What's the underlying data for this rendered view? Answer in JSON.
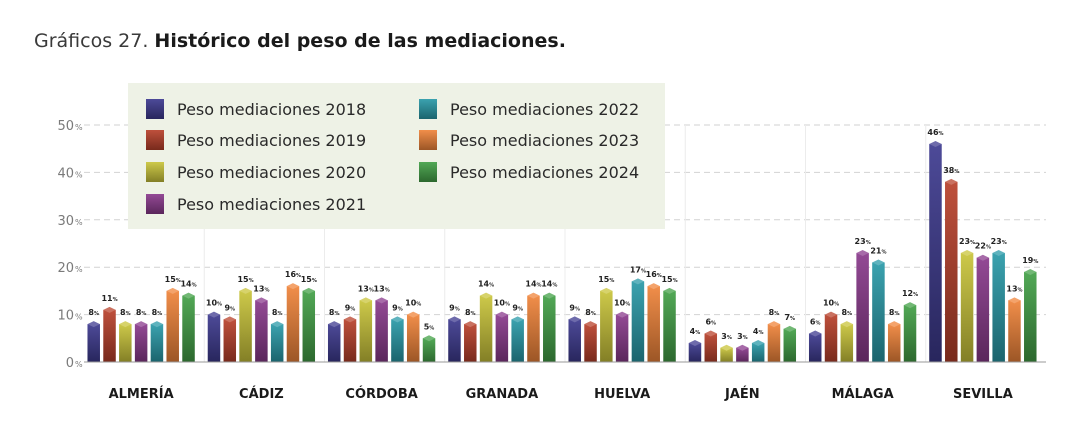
{
  "title": {
    "prefix": "Gráficos 27.",
    "main": "Histórico del peso de las mediaciones."
  },
  "chart_data": {
    "type": "bar",
    "title": "Gráficos 27. Histórico del peso de las mediaciones.",
    "categories": [
      "ALMERÍA",
      "CÁDIZ",
      "CÓRDOBA",
      "GRANADA",
      "HUELVA",
      "JAÉN",
      "MÁLAGA",
      "SEVILLA"
    ],
    "series": [
      {
        "name": "Peso mediaciones 2018",
        "color": "#3d3a8f",
        "values": [
          8,
          10,
          8,
          9,
          9,
          4,
          6,
          46
        ]
      },
      {
        "name": "Peso mediaciones 2019",
        "color": "#b8412b",
        "values": [
          11,
          9,
          9,
          8,
          8,
          6,
          10,
          38
        ]
      },
      {
        "name": "Peso mediaciones 2020",
        "color": "#c9c43a",
        "values": [
          8,
          15,
          13,
          14,
          15,
          3,
          8,
          23
        ]
      },
      {
        "name": "Peso mediaciones 2021",
        "color": "#8a3a8c",
        "values": [
          8,
          13,
          13,
          10,
          10,
          3,
          23,
          22
        ]
      },
      {
        "name": "Peso mediaciones 2022",
        "color": "#2a9aa8",
        "values": [
          8,
          8,
          9,
          9,
          17,
          4,
          21,
          23
        ]
      },
      {
        "name": "Peso mediaciones 2023",
        "color": "#f0843a",
        "values": [
          15,
          16,
          10,
          14,
          16,
          8,
          8,
          13
        ]
      },
      {
        "name": "Peso mediaciones 2024",
        "color": "#43a047",
        "values": [
          14,
          15,
          5,
          14,
          15,
          7,
          12,
          19
        ]
      }
    ],
    "yticks": [
      {
        "value": 0,
        "label": "0"
      },
      {
        "value": 10,
        "label": "10"
      },
      {
        "value": 20,
        "label": "20"
      },
      {
        "value": 30,
        "label": "30"
      },
      {
        "value": 40,
        "label": "40"
      },
      {
        "value": 50,
        "label": "50"
      }
    ],
    "unit": "%",
    "ylim": [
      0,
      50
    ],
    "grid": "dashed",
    "legend_position": "top-left"
  }
}
